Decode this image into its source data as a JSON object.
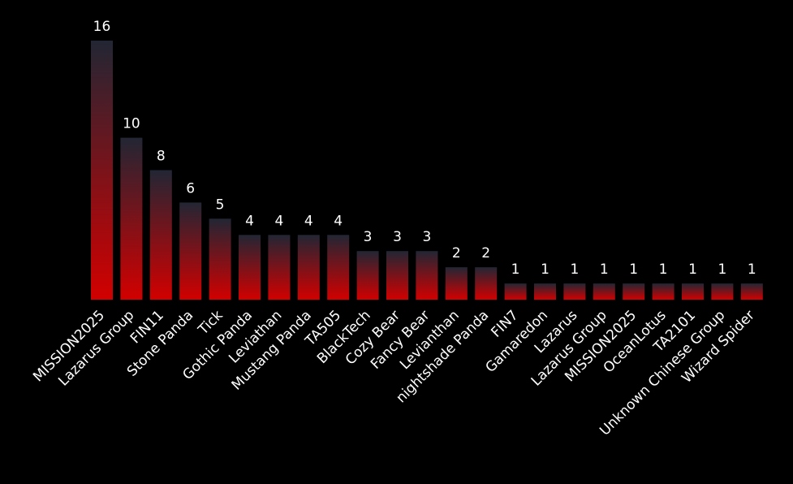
{
  "chart_data": {
    "type": "bar",
    "categories": [
      "MISSION2025",
      "Lazarus Group",
      "FIN11",
      "Stone Panda",
      "Tick",
      "Gothic Panda",
      "Leviathan",
      "Mustang Panda",
      "TA505",
      "BlackTech",
      "Cozy Bear",
      "Fancy Bear",
      "Levianthan",
      "nightshade Panda",
      "FIN7",
      "Gamaredon",
      "Lazarus",
      "Lazarus  Group",
      "MISSION2025",
      "OceanLotus",
      "TA2101",
      "Unknown Chinese Group",
      "Wizard Spider"
    ],
    "values": [
      16,
      10,
      8,
      6,
      5,
      4,
      4,
      4,
      4,
      3,
      3,
      3,
      2,
      2,
      1,
      1,
      1,
      1,
      1,
      1,
      1,
      1,
      1
    ],
    "title": "",
    "xlabel": "",
    "ylabel": "",
    "ylim": [
      0,
      16
    ],
    "grid": false,
    "legend": "none",
    "colors": {
      "bar_top": "#222634",
      "bar_bottom": "#d20000",
      "background": "#000000",
      "text": "#ffffff"
    }
  }
}
